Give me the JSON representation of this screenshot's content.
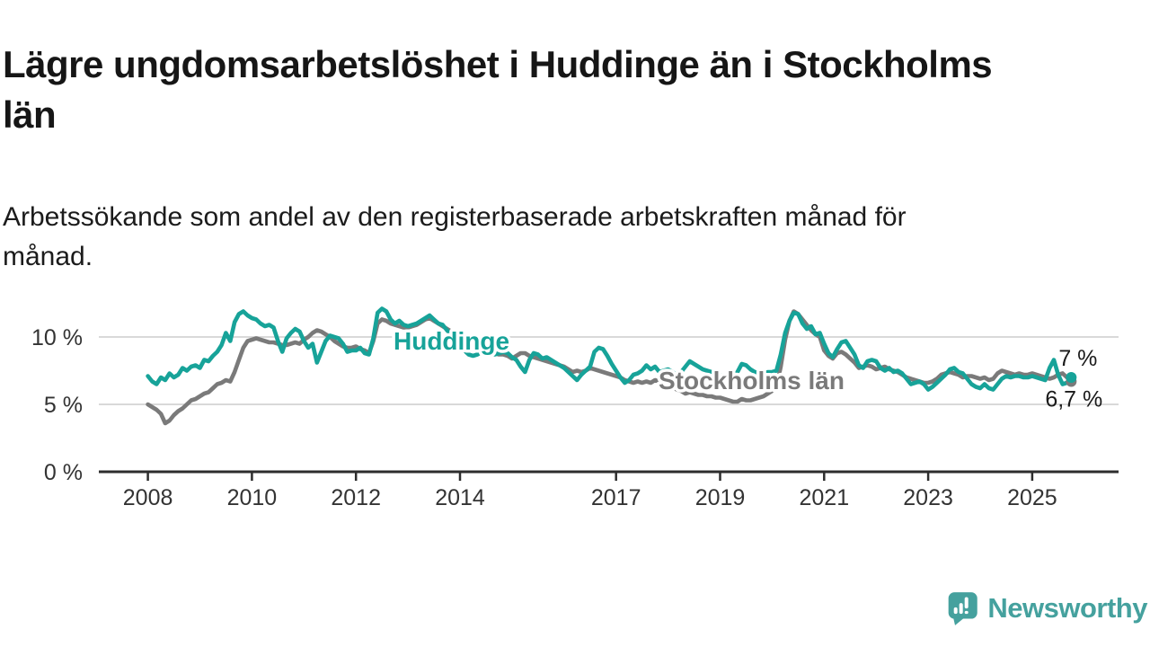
{
  "title": "Lägre ungdomsarbetslöshet i Huddinge än i Stockholms\nlän",
  "subtitle": "Arbetssökande som andel av den registerbaserade arbetskraften månad för\nmånad.",
  "branding": {
    "logo_text": "Newsworthy"
  },
  "colors": {
    "huddinge": "#17a399",
    "stockholm": "#7a7a7a",
    "axis": "#2d2d2d",
    "grid": "#d9d9d9",
    "tick_text": "#333333",
    "end_label_text": "#1a1a1a",
    "logo": "#45a19e"
  },
  "chart_data": {
    "type": "line",
    "frequency": "monthly",
    "start_year": 2008,
    "end_point": "2025-10",
    "ylim": [
      0,
      13
    ],
    "grid": "horizontal",
    "y_ticks": [
      {
        "value": 10,
        "label": "10 %"
      },
      {
        "value": 5,
        "label": "5 %"
      },
      {
        "value": 0,
        "label": "0 %"
      }
    ],
    "x_ticks": [
      {
        "year": 2008,
        "label": "2008"
      },
      {
        "year": 2010,
        "label": "2010"
      },
      {
        "year": 2012,
        "label": "2012"
      },
      {
        "year": 2014,
        "label": "2014"
      },
      {
        "year": 2017,
        "label": "2017"
      },
      {
        "year": 2019,
        "label": "2019"
      },
      {
        "year": 2021,
        "label": "2021"
      },
      {
        "year": 2023,
        "label": "2023"
      },
      {
        "year": 2025,
        "label": "2025"
      }
    ],
    "series": [
      {
        "id": "huddinge",
        "name": "Huddinge",
        "color": "#17a399",
        "end_label": "7 %",
        "end_dot": true,
        "values": [
          7.1,
          6.7,
          6.5,
          7.0,
          6.8,
          7.3,
          7.0,
          7.2,
          7.7,
          7.5,
          7.8,
          7.9,
          7.7,
          8.3,
          8.2,
          8.6,
          8.9,
          9.4,
          10.3,
          9.7,
          11.1,
          11.7,
          11.9,
          11.6,
          11.4,
          11.3,
          11.0,
          10.8,
          10.9,
          10.7,
          9.7,
          8.9,
          9.9,
          10.3,
          10.6,
          10.4,
          9.7,
          9.2,
          9.5,
          8.1,
          8.9,
          9.7,
          10.1,
          10.0,
          9.9,
          9.5,
          8.9,
          9.0,
          9.0,
          9.2,
          8.8,
          8.7,
          9.9,
          11.8,
          12.1,
          11.9,
          11.3,
          11.0,
          11.2,
          10.9,
          10.8,
          10.9,
          11.0,
          11.2,
          11.4,
          11.6,
          11.3,
          11.0,
          10.9,
          10.5,
          10.2,
          9.9,
          9.4,
          9.0,
          8.7,
          8.6,
          8.7,
          8.9,
          9.0,
          8.8,
          8.7,
          8.8,
          8.9,
          8.8,
          8.5,
          8.3,
          7.8,
          7.4,
          8.3,
          8.8,
          8.7,
          8.4,
          8.5,
          8.3,
          8.1,
          7.9,
          7.7,
          7.4,
          7.1,
          6.8,
          7.2,
          7.5,
          7.8,
          8.9,
          9.2,
          9.1,
          8.6,
          8.0,
          7.5,
          7.0,
          6.6,
          6.8,
          7.2,
          7.3,
          7.5,
          7.9,
          7.6,
          7.8,
          7.4,
          7.5,
          7.6,
          7.4,
          7.2,
          7.4,
          7.8,
          8.2,
          8.0,
          7.8,
          7.6,
          7.5,
          7.4,
          7.3,
          7.2,
          7.0,
          6.9,
          7.1,
          7.4,
          8.0,
          7.9,
          7.6,
          7.4,
          7.3,
          7.2,
          7.4,
          7.4,
          7.5,
          8.7,
          10.3,
          11.2,
          11.8,
          11.7,
          11.0,
          10.6,
          10.8,
          10.2,
          10.3,
          9.5,
          8.8,
          8.5,
          9.1,
          9.6,
          9.7,
          9.2,
          8.7,
          7.9,
          7.7,
          8.2,
          8.3,
          8.2,
          7.7,
          7.5,
          7.7,
          7.4,
          7.5,
          7.3,
          6.9,
          6.5,
          6.6,
          6.7,
          6.5,
          6.1,
          6.3,
          6.6,
          6.9,
          7.2,
          7.6,
          7.7,
          7.4,
          7.3,
          6.9,
          6.5,
          6.3,
          6.2,
          6.5,
          6.2,
          6.1,
          6.5,
          6.9,
          7.1,
          7.0,
          7.1,
          7.1,
          7.0,
          7.0,
          7.1,
          7.0,
          6.9,
          6.8,
          7.7,
          8.3,
          7.2,
          6.5,
          6.6,
          7.0
        ]
      },
      {
        "id": "stockholms-lan",
        "name": "Stockholms län",
        "color": "#7a7a7a",
        "end_label": "6,7 %",
        "end_dot": true,
        "values": [
          5.0,
          4.8,
          4.6,
          4.3,
          3.6,
          3.8,
          4.2,
          4.5,
          4.7,
          5.0,
          5.3,
          5.4,
          5.6,
          5.8,
          5.9,
          6.2,
          6.5,
          6.6,
          6.8,
          6.7,
          7.4,
          8.3,
          9.2,
          9.7,
          9.8,
          9.9,
          9.8,
          9.7,
          9.6,
          9.6,
          9.5,
          9.4,
          9.4,
          9.5,
          9.6,
          9.5,
          9.8,
          10.0,
          10.3,
          10.5,
          10.4,
          10.2,
          10.0,
          9.7,
          9.5,
          9.3,
          9.2,
          9.2,
          9.3,
          9.1,
          9.0,
          8.8,
          9.7,
          11.0,
          11.3,
          11.2,
          11.0,
          10.9,
          10.8,
          10.7,
          10.7,
          10.8,
          10.9,
          11.1,
          11.3,
          11.4,
          11.2,
          11.0,
          10.8,
          10.6,
          10.4,
          10.3,
          9.9,
          9.7,
          9.5,
          9.3,
          9.2,
          9.1,
          9.0,
          8.9,
          8.8,
          8.7,
          8.7,
          8.6,
          8.4,
          8.6,
          8.8,
          8.8,
          8.6,
          8.5,
          8.4,
          8.3,
          8.2,
          8.1,
          8.0,
          7.9,
          7.8,
          7.6,
          7.4,
          7.5,
          7.4,
          7.5,
          7.7,
          7.6,
          7.5,
          7.4,
          7.3,
          7.2,
          7.1,
          7.0,
          6.8,
          6.7,
          6.6,
          6.7,
          6.6,
          6.7,
          6.6,
          6.8,
          6.7,
          6.6,
          6.5,
          6.3,
          6.1,
          6.0,
          5.8,
          5.9,
          5.8,
          5.7,
          5.7,
          5.6,
          5.6,
          5.5,
          5.5,
          5.4,
          5.3,
          5.2,
          5.2,
          5.4,
          5.3,
          5.3,
          5.4,
          5.5,
          5.6,
          5.8,
          6.0,
          6.3,
          7.8,
          9.8,
          11.2,
          11.9,
          11.7,
          11.3,
          10.9,
          10.5,
          10.2,
          10.0,
          9.0,
          8.6,
          8.4,
          8.8,
          8.9,
          8.7,
          8.4,
          8.1,
          7.7,
          7.8,
          7.9,
          7.8,
          7.6,
          7.7,
          7.8,
          7.6,
          7.5,
          7.4,
          7.2,
          7.0,
          6.9,
          6.8,
          6.7,
          6.6,
          6.6,
          6.7,
          6.9,
          7.2,
          7.3,
          7.4,
          7.3,
          7.2,
          7.0,
          7.1,
          7.1,
          7.0,
          6.9,
          7.0,
          6.8,
          6.9,
          7.3,
          7.5,
          7.4,
          7.3,
          7.2,
          7.3,
          7.2,
          7.2,
          7.3,
          7.2,
          7.1,
          7.0,
          6.9,
          7.0,
          7.2,
          7.3,
          7.0,
          6.7
        ]
      }
    ]
  }
}
